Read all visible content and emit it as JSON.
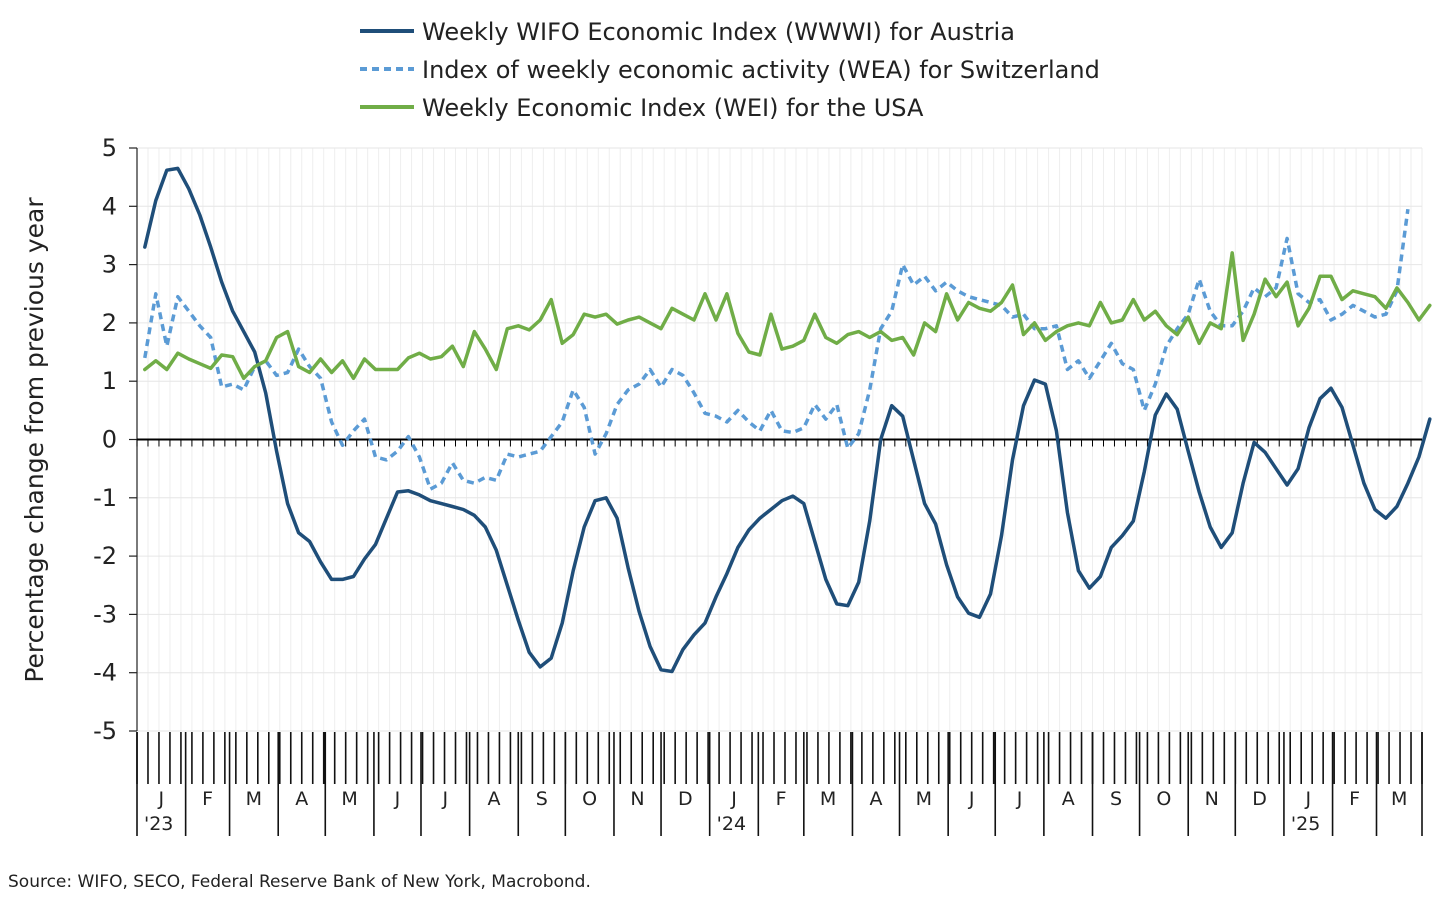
{
  "chart_data": {
    "type": "line",
    "ylabel": "Percentage change from previous year",
    "ylim": [
      -5,
      5
    ],
    "yticks": [
      "5",
      "4",
      "3",
      "2",
      "1",
      "0",
      "-1",
      "-2",
      "-3",
      "-4",
      "-5"
    ],
    "grid": true,
    "legend_position": "top",
    "x_start": "2023-01-06",
    "x_step_days": 7,
    "months": [
      "J",
      "F",
      "M",
      "A",
      "M",
      "J",
      "J",
      "A",
      "S",
      "O",
      "N",
      "D",
      "J",
      "F",
      "M",
      "A",
      "M",
      "J",
      "J",
      "A",
      "S",
      "O",
      "N",
      "D",
      "J",
      "F",
      "M"
    ],
    "years": [
      {
        "label": "'23",
        "month_index": 0
      },
      {
        "label": "'24",
        "month_index": 12
      },
      {
        "label": "'25",
        "month_index": 24
      }
    ],
    "series": [
      {
        "name": "Weekly WIFO Economic Index (WWWI) for Austria",
        "color": "#1f4e79",
        "style": "solid",
        "values": [
          3.3,
          4.1,
          4.62,
          4.65,
          4.3,
          3.85,
          3.3,
          2.7,
          2.2,
          1.85,
          1.5,
          0.8,
          -0.2,
          -1.1,
          -1.6,
          -1.75,
          -2.1,
          -2.4,
          -2.4,
          -2.35,
          -2.05,
          -1.8,
          -1.35,
          -0.9,
          -0.88,
          -0.95,
          -1.05,
          -1.1,
          -1.15,
          -1.2,
          -1.3,
          -1.5,
          -1.9,
          -2.5,
          -3.1,
          -3.65,
          -3.9,
          -3.75,
          -3.15,
          -2.25,
          -1.5,
          -1.05,
          -1.0,
          -1.35,
          -2.2,
          -2.95,
          -3.55,
          -3.95,
          -3.98,
          -3.6,
          -3.35,
          -3.15,
          -2.7,
          -2.3,
          -1.85,
          -1.55,
          -1.35,
          -1.2,
          -1.05,
          -0.97,
          -1.1,
          -1.75,
          -2.4,
          -2.82,
          -2.85,
          -2.45,
          -1.4,
          0.0,
          0.58,
          0.4,
          -0.35,
          -1.1,
          -1.45,
          -2.15,
          -2.7,
          -2.98,
          -3.05,
          -2.65,
          -1.65,
          -0.35,
          0.58,
          1.02,
          0.95,
          0.15,
          -1.25,
          -2.25,
          -2.55,
          -2.35,
          -1.85,
          -1.65,
          -1.4,
          -0.55,
          0.42,
          0.78,
          0.52,
          -0.2,
          -0.9,
          -1.5,
          -1.85,
          -1.6,
          -0.75,
          -0.05,
          -0.22,
          -0.5,
          -0.78,
          -0.5,
          0.2,
          0.7,
          0.88,
          0.55,
          -0.1,
          -0.75,
          -1.2,
          -1.35,
          -1.15,
          -0.75,
          -0.3,
          0.35
        ]
      },
      {
        "name": "Index of weekly economic activity (WEA) for Switzerland",
        "color": "#5b9bd5",
        "style": "dashed",
        "values": [
          1.4,
          2.5,
          1.6,
          2.45,
          2.2,
          1.95,
          1.75,
          0.9,
          0.95,
          0.85,
          1.25,
          1.35,
          1.1,
          1.15,
          1.55,
          1.25,
          1.05,
          0.3,
          -0.1,
          0.15,
          0.35,
          -0.3,
          -0.35,
          -0.2,
          0.05,
          -0.3,
          -0.85,
          -0.75,
          -0.4,
          -0.7,
          -0.75,
          -0.65,
          -0.7,
          -0.25,
          -0.3,
          -0.25,
          -0.2,
          0.05,
          0.3,
          0.85,
          0.55,
          -0.25,
          0.1,
          0.6,
          0.85,
          0.95,
          1.2,
          0.9,
          1.2,
          1.1,
          0.8,
          0.45,
          0.4,
          0.3,
          0.5,
          0.3,
          0.15,
          0.5,
          0.15,
          0.12,
          0.2,
          0.6,
          0.35,
          0.6,
          -0.15,
          0.1,
          0.85,
          1.9,
          2.2,
          3.0,
          2.65,
          2.8,
          2.55,
          2.7,
          2.55,
          2.45,
          2.4,
          2.35,
          2.3,
          2.1,
          2.15,
          1.9,
          1.9,
          1.95,
          1.2,
          1.35,
          1.05,
          1.35,
          1.65,
          1.3,
          1.2,
          0.5,
          0.95,
          1.6,
          1.9,
          2.15,
          2.75,
          2.2,
          1.95,
          1.95,
          2.2,
          2.6,
          2.45,
          2.6,
          3.45,
          2.5,
          2.35,
          2.4,
          2.05,
          2.15,
          2.3,
          2.2,
          2.1,
          2.15,
          2.55,
          3.95
        ]
      },
      {
        "name": "Weekly Economic Index (WEI) for the USA",
        "color": "#70ad47",
        "style": "solid",
        "values": [
          1.2,
          1.35,
          1.2,
          1.48,
          1.38,
          1.3,
          1.22,
          1.45,
          1.42,
          1.05,
          1.25,
          1.35,
          1.75,
          1.85,
          1.25,
          1.15,
          1.38,
          1.15,
          1.35,
          1.05,
          1.38,
          1.2,
          1.2,
          1.2,
          1.4,
          1.48,
          1.38,
          1.42,
          1.6,
          1.25,
          1.85,
          1.55,
          1.2,
          1.9,
          1.95,
          1.88,
          2.05,
          2.4,
          1.65,
          1.8,
          2.15,
          2.1,
          2.15,
          1.98,
          2.05,
          2.1,
          2.0,
          1.9,
          2.25,
          2.15,
          2.05,
          2.5,
          2.05,
          2.5,
          1.82,
          1.5,
          1.45,
          2.15,
          1.55,
          1.6,
          1.7,
          2.15,
          1.75,
          1.65,
          1.8,
          1.85,
          1.75,
          1.85,
          1.7,
          1.75,
          1.45,
          2.0,
          1.85,
          2.5,
          2.05,
          2.35,
          2.25,
          2.2,
          2.35,
          2.65,
          1.8,
          2.0,
          1.7,
          1.85,
          1.95,
          2.0,
          1.95,
          2.35,
          2.0,
          2.05,
          2.4,
          2.05,
          2.2,
          1.95,
          1.8,
          2.1,
          1.65,
          2.0,
          1.9,
          3.2,
          1.7,
          2.15,
          2.75,
          2.45,
          2.7,
          1.95,
          2.25,
          2.8,
          2.8,
          2.4,
          2.55,
          2.5,
          2.45,
          2.25,
          2.6,
          2.35,
          2.05,
          2.3
        ]
      }
    ]
  },
  "footer": {
    "source": "Source: WIFO, SECO, Federal Reserve Bank of New York, Macrobond."
  }
}
